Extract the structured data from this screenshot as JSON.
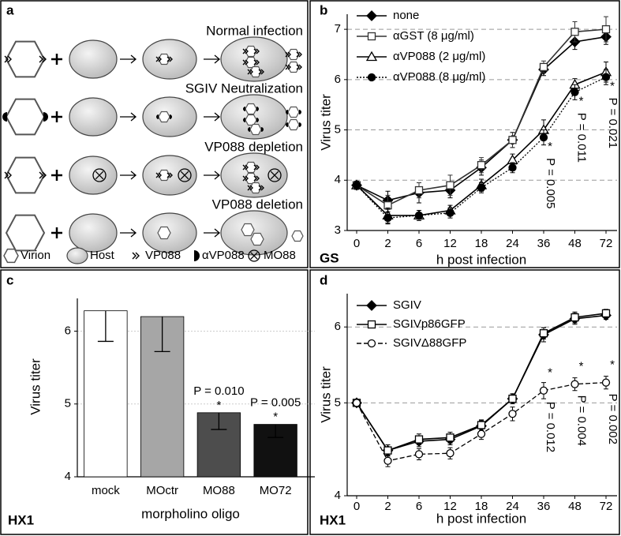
{
  "diagram": {
    "panel_label": "a",
    "rows": [
      {
        "title": "Normal infection"
      },
      {
        "title": "SGIV Neutralization"
      },
      {
        "title": "VP088 depletion"
      },
      {
        "title": "VP088 deletion"
      }
    ],
    "legend": [
      "Virion",
      "Host",
      "VP088",
      "αVP088",
      "MO88"
    ]
  },
  "chart_data": [
    {
      "type": "line",
      "panel_label": "b",
      "corner_label": "GS",
      "x_label": "h post infection",
      "y_label": "Virus titer",
      "categories": [
        0,
        2,
        6,
        12,
        18,
        24,
        36,
        48,
        72
      ],
      "ylim": [
        3,
        7.3
      ],
      "yticks": [
        3,
        4,
        5,
        6,
        7
      ],
      "grid": true,
      "log_scale": false,
      "series": [
        {
          "name": "none",
          "color": "#000000",
          "marker": "diamond",
          "filled": true,
          "dash": "solid",
          "values": [
            3.9,
            3.6,
            3.75,
            3.8,
            4.25,
            4.8,
            6.2,
            6.75,
            6.85
          ],
          "errors": [
            0.08,
            0.18,
            0.2,
            0.15,
            0.15,
            0.15,
            0.12,
            0.15,
            0.15
          ]
        },
        {
          "name": "αGST (8 μg/ml)",
          "color": "#333333",
          "marker": "square",
          "filled": false,
          "dash": "solid",
          "values": [
            3.9,
            3.5,
            3.8,
            3.9,
            4.3,
            4.8,
            6.25,
            6.95,
            7.0
          ],
          "errors": [
            0.08,
            0.2,
            0.15,
            0.2,
            0.15,
            0.15,
            0.12,
            0.2,
            0.25
          ]
        },
        {
          "name": "αVP088 (2 μg/ml)",
          "color": "#000000",
          "marker": "triangle",
          "filled": false,
          "dash": "solid",
          "values": [
            3.9,
            3.3,
            3.3,
            3.4,
            3.9,
            4.4,
            5.0,
            5.9,
            6.15
          ],
          "errors": [
            0.08,
            0.15,
            0.1,
            0.1,
            0.12,
            0.12,
            0.2,
            0.12,
            0.2
          ]
        },
        {
          "name": "αVP088 (8 μg/ml)",
          "color": "#000000",
          "marker": "circle",
          "filled": true,
          "dash": "dotted",
          "values": [
            3.9,
            3.25,
            3.3,
            3.35,
            3.85,
            4.25,
            4.85,
            5.75,
            6.05
          ],
          "errors": [
            0.08,
            0.12,
            0.1,
            0.1,
            0.1,
            0.1,
            0.15,
            0.15,
            0.15
          ]
        }
      ],
      "annotations": [
        {
          "mark": "*",
          "label": "P = 0.005"
        },
        {
          "mark": "*",
          "label": "P = 0.011"
        },
        {
          "mark": "*",
          "label": "P = 0.021"
        }
      ]
    },
    {
      "type": "bar",
      "panel_label": "c",
      "corner_label": "HX1",
      "x_label": "morpholino oligo",
      "y_label": "Virus titer",
      "categories": [
        "mock",
        "MOctr",
        "MO88",
        "MO72"
      ],
      "values": [
        6.28,
        6.2,
        4.88,
        4.72
      ],
      "errors": [
        0.42,
        0.48,
        0.23,
        0.18
      ],
      "colors": [
        "#ffffff",
        "#a6a6a6",
        "#4d4d4d",
        "#111111"
      ],
      "ylim": [
        4,
        6.45
      ],
      "yticks": [
        4,
        5,
        6
      ],
      "grid": true,
      "annotations": [
        {
          "mark": "*",
          "label": "P = 0.010"
        },
        {
          "mark": "*",
          "label": "P = 0.005"
        }
      ]
    },
    {
      "type": "line",
      "panel_label": "d",
      "corner_label": "HX1",
      "x_label": "h post infection",
      "y_label": "Virus titer",
      "categories": [
        0,
        2,
        6,
        12,
        18,
        24,
        36,
        48,
        72
      ],
      "ylim": [
        4,
        6.5
      ],
      "yticks": [
        4,
        5,
        6
      ],
      "grid": true,
      "log_scale": true,
      "series": [
        {
          "name": "SGIV",
          "color": "#000000",
          "marker": "diamond",
          "filled": true,
          "dash": "solid",
          "values": [
            5.0,
            4.46,
            4.56,
            4.58,
            4.73,
            5.05,
            5.89,
            6.12,
            6.17
          ],
          "errors": [
            0.02,
            0.06,
            0.06,
            0.06,
            0.06,
            0.06,
            0.1,
            0.08,
            0.06
          ]
        },
        {
          "name": "SGIVp86GFP",
          "color": "#000000",
          "marker": "square",
          "filled": false,
          "dash": "solid",
          "values": [
            5.0,
            4.46,
            4.58,
            4.6,
            4.74,
            5.05,
            5.91,
            6.14,
            6.2
          ],
          "errors": [
            0.02,
            0.06,
            0.06,
            0.06,
            0.06,
            0.06,
            0.08,
            0.08,
            0.06
          ]
        },
        {
          "name": "SGIVΔ88GFP",
          "color": "#000000",
          "marker": "circle",
          "filled": false,
          "dash": "dashed",
          "values": [
            5.0,
            4.35,
            4.42,
            4.43,
            4.64,
            4.87,
            5.15,
            5.23,
            5.25
          ],
          "errors": [
            0.02,
            0.06,
            0.06,
            0.06,
            0.06,
            0.08,
            0.1,
            0.08,
            0.08
          ]
        }
      ],
      "annotations": [
        {
          "mark": "*",
          "label": "P = 0.012"
        },
        {
          "mark": "*",
          "label": "P = 0.004"
        },
        {
          "mark": "*",
          "label": "P = 0.002"
        }
      ]
    }
  ]
}
